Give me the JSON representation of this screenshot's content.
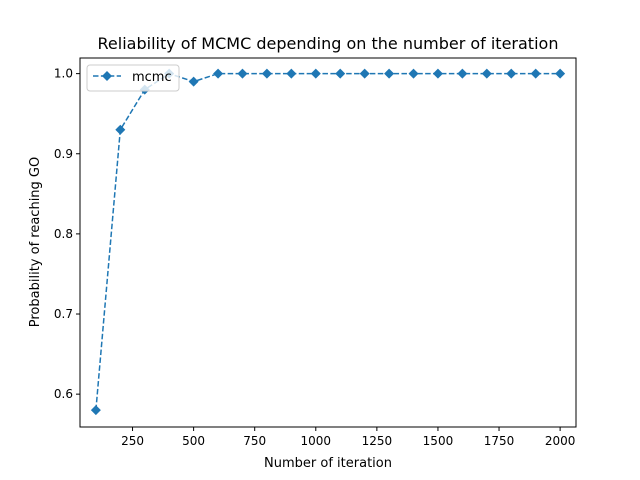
{
  "chart_data": {
    "type": "line",
    "title": "Reliability of MCMC depending on the number of iteration",
    "xlabel": "Number of iteration",
    "ylabel": "Probability of reaching GO",
    "xlim": [
      35,
      2065
    ],
    "ylim": [
      0.559,
      1.0195
    ],
    "xticks": [
      250,
      500,
      750,
      1000,
      1250,
      1500,
      1750,
      2000
    ],
    "yticks": [
      0.6,
      0.7,
      0.8,
      0.9,
      1.0
    ],
    "grid": false,
    "legend_position": "upper left",
    "series": [
      {
        "name": "mcmc",
        "color": "#1f77b4",
        "line_style": "dashed",
        "marker": "diamond",
        "x": [
          100,
          200,
          300,
          400,
          500,
          600,
          700,
          800,
          900,
          1000,
          1100,
          1200,
          1300,
          1400,
          1500,
          1600,
          1700,
          1800,
          1900,
          2000
        ],
        "y": [
          0.58,
          0.93,
          0.98,
          1.0,
          0.99,
          1.0,
          1.0,
          1.0,
          1.0,
          1.0,
          1.0,
          1.0,
          1.0,
          1.0,
          1.0,
          1.0,
          1.0,
          1.0,
          1.0,
          1.0
        ]
      }
    ]
  }
}
